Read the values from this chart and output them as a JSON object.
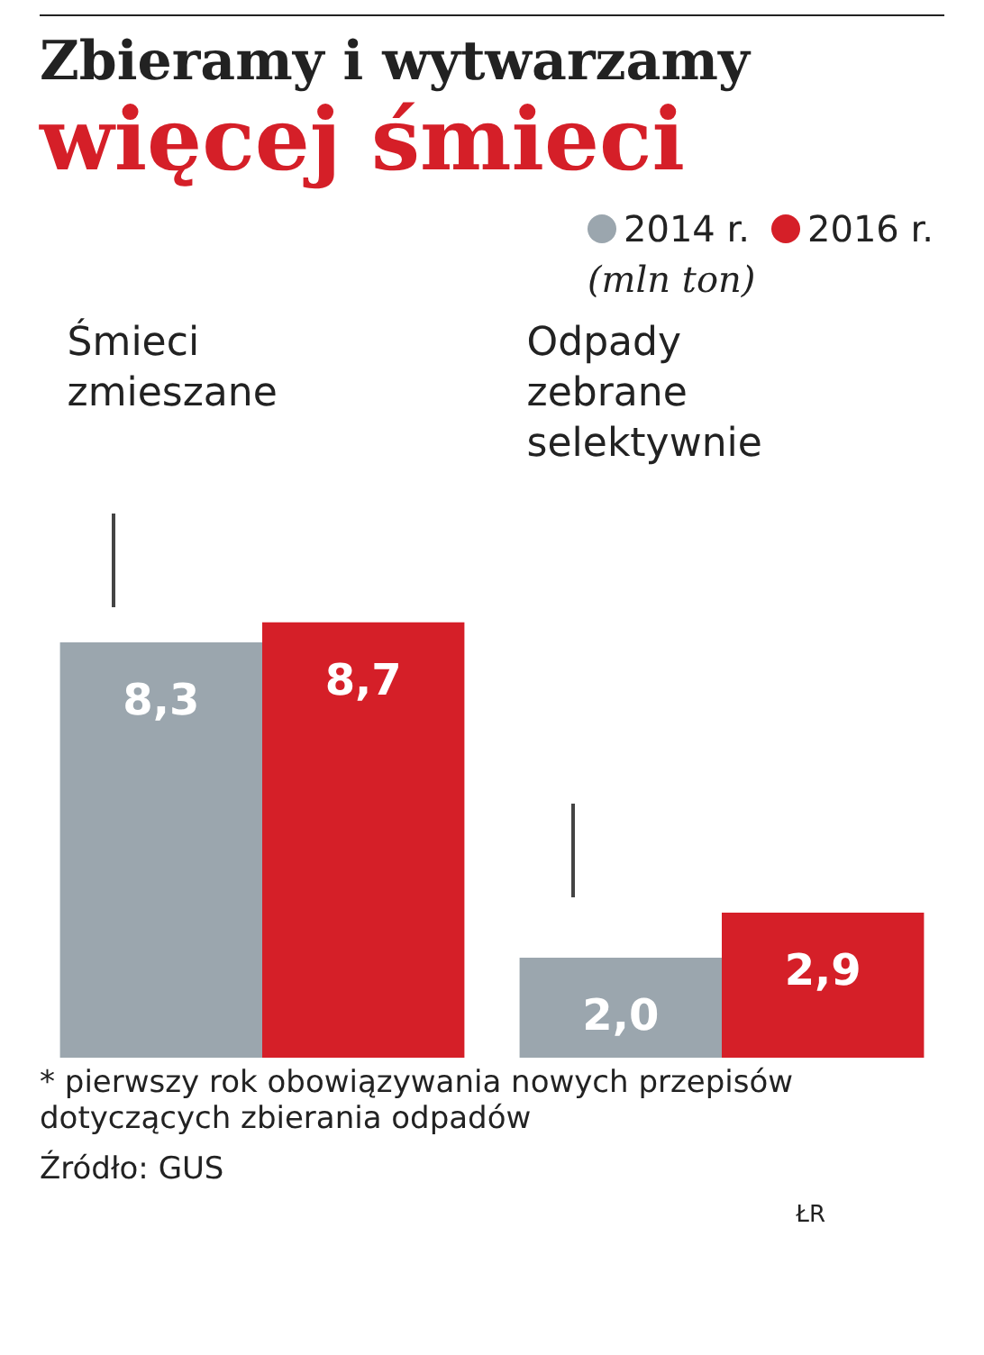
{
  "chart_data": {
    "type": "bar",
    "title": "Zbieramy i wytwarzamy",
    "subtitle": "więcej śmieci",
    "ylabel": "(mln ton)",
    "categories": [
      "Śmieci zmieszane",
      "Odpady zebrane selektywnie"
    ],
    "series": [
      {
        "name": "2014 r.",
        "color": "#9ba6ae",
        "values": [
          8.3,
          2.0
        ],
        "value_labels": [
          "8,3",
          "2,0"
        ]
      },
      {
        "name": "2016 r.",
        "color": "#d51f28",
        "values": [
          8.7,
          2.9
        ],
        "value_labels": [
          "8,7",
          "2,9"
        ]
      }
    ],
    "legend": "top right",
    "annotations": [
      "* pierwszy rok obowiązywania nowych przepisów dotyczących zbierania odpadów",
      "Źródło: GUS",
      "ŁR"
    ]
  }
}
